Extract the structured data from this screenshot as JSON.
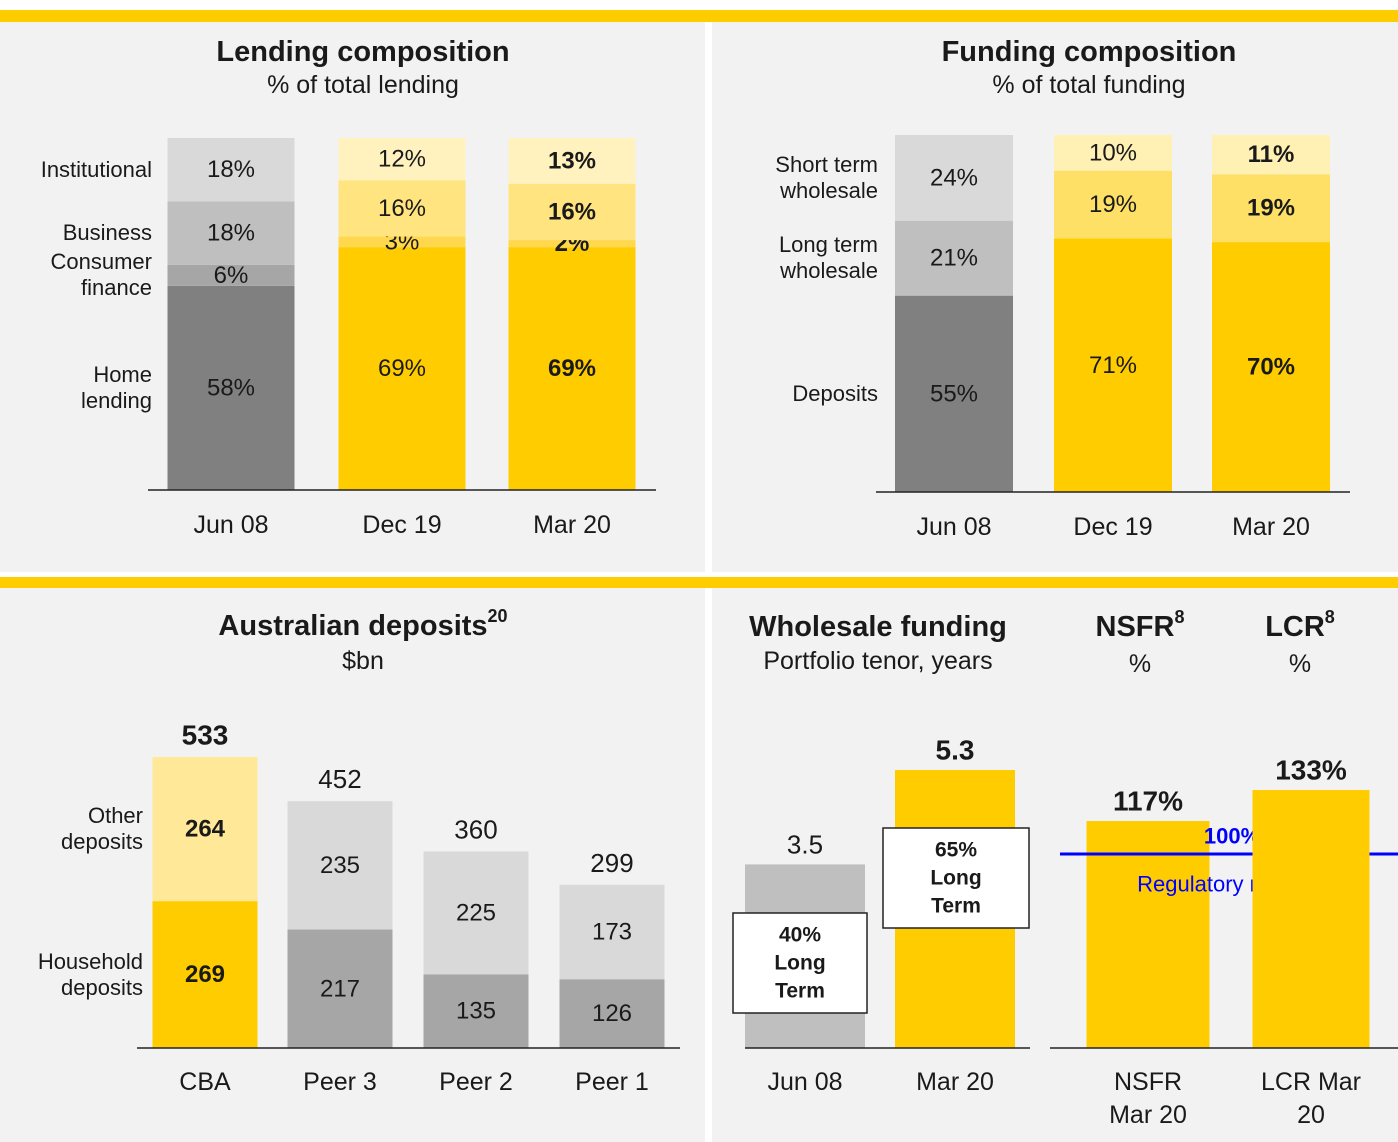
{
  "chart_data": [
    {
      "type": "bar",
      "stacked": true,
      "title": "Lending composition",
      "subtitle": "% of total lending",
      "categories": [
        "Jun 08",
        "Dec 19",
        "Mar 20"
      ],
      "series": [
        {
          "name": "Home lending",
          "colors": [
            "#808080",
            "#ffcc00",
            "#ffcc00"
          ],
          "values": [
            58,
            69,
            69
          ],
          "value_labels": [
            "58%",
            "69%",
            "69%"
          ]
        },
        {
          "name": "Consumer finance",
          "colors": [
            "#a6a6a6",
            "#ffd84d",
            "#ffd84d"
          ],
          "values": [
            6,
            3,
            2
          ],
          "value_labels": [
            "6%",
            "3%",
            "2%"
          ]
        },
        {
          "name": "Business",
          "colors": [
            "#bfbfbf",
            "#ffe47f",
            "#ffe47f"
          ],
          "values": [
            18,
            16,
            16
          ],
          "value_labels": [
            "18%",
            "16%",
            "16%"
          ]
        },
        {
          "name": "Institutional",
          "colors": [
            "#d9d9d9",
            "#fff2bf",
            "#fff2bf"
          ],
          "values": [
            18,
            12,
            13
          ],
          "value_labels": [
            "18%",
            "12%",
            "13%"
          ]
        }
      ]
    },
    {
      "type": "bar",
      "stacked": true,
      "title": "Funding composition",
      "subtitle": "% of total funding",
      "categories": [
        "Jun 08",
        "Dec 19",
        "Mar 20"
      ],
      "series": [
        {
          "name": "Deposits",
          "colors": [
            "#808080",
            "#ffcc00",
            "#ffcc00"
          ],
          "values": [
            55,
            71,
            70
          ],
          "value_labels": [
            "55%",
            "71%",
            "70%"
          ]
        },
        {
          "name": "Long term wholesale",
          "colors": [
            "#bfbfbf",
            "#ffe066",
            "#ffe066"
          ],
          "values": [
            21,
            19,
            19
          ],
          "value_labels": [
            "21%",
            "19%",
            "19%"
          ]
        },
        {
          "name": "Short term wholesale",
          "colors": [
            "#d9d9d9",
            "#fff0b3",
            "#fff0b3"
          ],
          "values": [
            24,
            10,
            11
          ],
          "value_labels": [
            "24%",
            "10%",
            "11%"
          ]
        }
      ]
    },
    {
      "type": "bar",
      "stacked": true,
      "title": "Australian deposits",
      "title_note": "20",
      "subtitle": "$bn",
      "categories": [
        "CBA",
        "Peer 3",
        "Peer 2",
        "Peer 1"
      ],
      "series": [
        {
          "name": "Household deposits",
          "colors": [
            "#ffcc00",
            "#a6a6a6",
            "#a6a6a6",
            "#a6a6a6"
          ],
          "values": [
            269,
            217,
            135,
            126
          ]
        },
        {
          "name": "Other deposits",
          "colors": [
            "#ffe999",
            "#d9d9d9",
            "#d9d9d9",
            "#d9d9d9"
          ],
          "values": [
            264,
            235,
            225,
            173
          ]
        }
      ],
      "totals": [
        533,
        452,
        360,
        299
      ]
    },
    {
      "type": "bar",
      "title": "Wholesale funding",
      "subtitle": "Portfolio tenor, years",
      "categories": [
        "Jun 08",
        "Mar 20"
      ],
      "values": [
        3.5,
        5.3
      ],
      "colors": [
        "#bfbfbf",
        "#ffcc00"
      ],
      "annotations": [
        [
          "40%",
          "Long",
          "Term"
        ],
        [
          "65%",
          "Long",
          "Term"
        ]
      ]
    },
    {
      "type": "bar",
      "title": "NSFR",
      "title_note": "8",
      "subtitle": "%",
      "categories": [
        "NSFR Mar 20"
      ],
      "values": [
        117
      ],
      "value_labels": [
        "117%"
      ],
      "colors": [
        "#ffcc00"
      ],
      "reference_line": {
        "value": 100,
        "label": "100%",
        "text": "Regulatory minimum",
        "color": "#0000ff"
      }
    },
    {
      "type": "bar",
      "title": "LCR",
      "title_note": "8",
      "subtitle": "%",
      "categories": [
        "LCR Mar 20"
      ],
      "values": [
        133
      ],
      "value_labels": [
        "133%"
      ],
      "colors": [
        "#ffcc00"
      ]
    }
  ]
}
